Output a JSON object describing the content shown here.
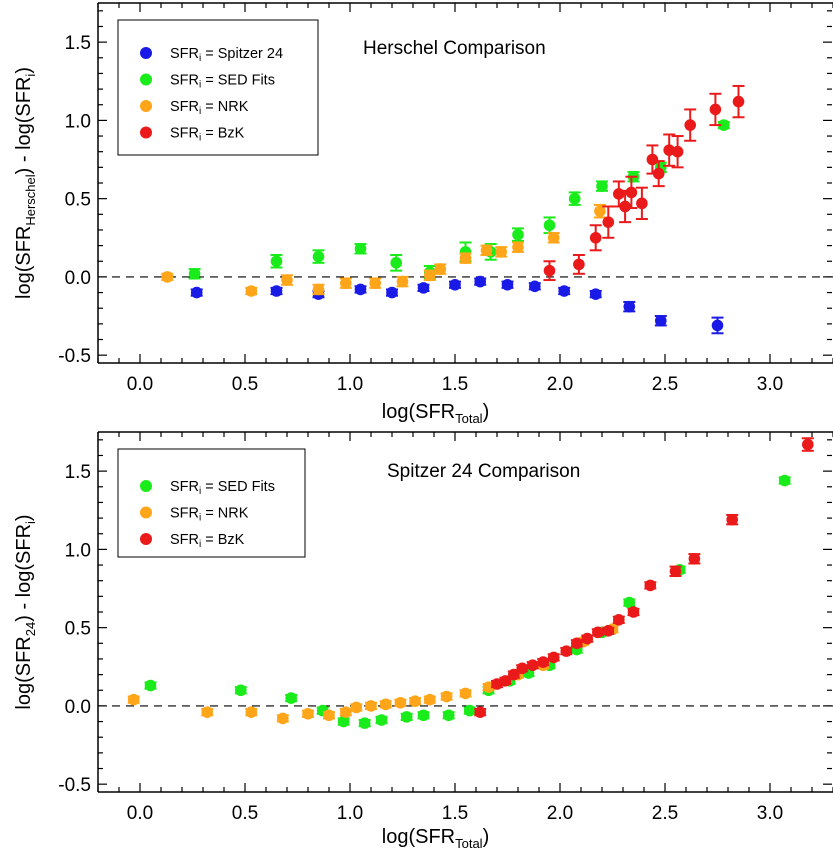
{
  "chart_data": [
    {
      "type": "scatter",
      "title": "Herschel Comparison",
      "xlabel": "log(SFR",
      "xlabel_sub": "Total",
      "xlabel_tail": ")",
      "ylabel_pre": "log(SFR",
      "ylabel_sub1": "Herschel",
      "ylabel_mid": ") - log(SFR",
      "ylabel_sub2": "i",
      "ylabel_tail": ")",
      "xlim": [
        -0.2,
        3.3
      ],
      "ylim": [
        -0.55,
        1.75
      ],
      "xticks": [
        0.0,
        0.5,
        1.0,
        1.5,
        2.0,
        2.5,
        3.0
      ],
      "xtick_labels": [
        "0.0",
        "0.5",
        "1.0",
        "1.5",
        "2.0",
        "2.5",
        "3.0"
      ],
      "yticks": [
        -0.5,
        0.0,
        0.5,
        1.0,
        1.5
      ],
      "ytick_labels": [
        "-0.5",
        "0.0",
        "0.5",
        "1.0",
        "1.5"
      ],
      "reference_line": 0.0,
      "legend_position": "top-left",
      "series": [
        {
          "name_pre": "SFR",
          "name_sub": "i",
          "name_post": " = Spitzer 24",
          "color": "#1a1ae6",
          "points": [
            [
              0.27,
              -0.1,
              0.02
            ],
            [
              0.65,
              -0.09,
              0.02
            ],
            [
              0.85,
              -0.11,
              0.02
            ],
            [
              1.05,
              -0.08,
              0.02
            ],
            [
              1.2,
              -0.1,
              0.02
            ],
            [
              1.35,
              -0.07,
              0.02
            ],
            [
              1.5,
              -0.05,
              0.02
            ],
            [
              1.62,
              -0.03,
              0.02
            ],
            [
              1.75,
              -0.05,
              0.02
            ],
            [
              1.88,
              -0.06,
              0.02
            ],
            [
              2.02,
              -0.09,
              0.02
            ],
            [
              2.17,
              -0.11,
              0.02
            ],
            [
              2.33,
              -0.19,
              0.03
            ],
            [
              2.48,
              -0.28,
              0.03
            ],
            [
              2.75,
              -0.31,
              0.05
            ]
          ]
        },
        {
          "name_pre": "SFR",
          "name_sub": "i",
          "name_post": " = SED Fits",
          "color": "#1aeb1a",
          "points": [
            [
              0.26,
              0.02,
              0.03
            ],
            [
              0.65,
              0.1,
              0.04
            ],
            [
              0.85,
              0.13,
              0.04
            ],
            [
              1.05,
              0.18,
              0.03
            ],
            [
              1.22,
              0.09,
              0.05
            ],
            [
              1.38,
              0.03,
              0.04
            ],
            [
              1.55,
              0.16,
              0.06
            ],
            [
              1.67,
              0.16,
              0.05
            ],
            [
              1.8,
              0.27,
              0.04
            ],
            [
              1.95,
              0.33,
              0.05
            ],
            [
              2.07,
              0.5,
              0.04
            ],
            [
              2.2,
              0.58,
              0.03
            ],
            [
              2.35,
              0.64,
              0.03
            ],
            [
              2.48,
              0.7,
              0.03
            ],
            [
              2.78,
              0.97,
              0.02
            ]
          ]
        },
        {
          "name_pre": "SFR",
          "name_sub": "i",
          "name_post": " = NRK",
          "color": "#ffa51a",
          "points": [
            [
              0.13,
              0.0,
              0.02
            ],
            [
              0.53,
              -0.09,
              0.02
            ],
            [
              0.7,
              -0.02,
              0.03
            ],
            [
              0.85,
              -0.08,
              0.03
            ],
            [
              0.98,
              -0.04,
              0.03
            ],
            [
              1.12,
              -0.04,
              0.03
            ],
            [
              1.25,
              -0.03,
              0.03
            ],
            [
              1.38,
              0.01,
              0.03
            ],
            [
              1.43,
              0.05,
              0.03
            ],
            [
              1.55,
              0.12,
              0.03
            ],
            [
              1.65,
              0.17,
              0.03
            ],
            [
              1.72,
              0.16,
              0.03
            ],
            [
              1.8,
              0.19,
              0.03
            ],
            [
              1.97,
              0.25,
              0.03
            ],
            [
              2.19,
              0.42,
              0.04
            ]
          ]
        },
        {
          "name_pre": "SFR",
          "name_sub": "i",
          "name_post": " = BzK",
          "color": "#eb1a1a",
          "points": [
            [
              1.95,
              0.04,
              0.06
            ],
            [
              2.09,
              0.08,
              0.06
            ],
            [
              2.17,
              0.25,
              0.08
            ],
            [
              2.23,
              0.35,
              0.1
            ],
            [
              2.28,
              0.53,
              0.08
            ],
            [
              2.31,
              0.45,
              0.1
            ],
            [
              2.34,
              0.54,
              0.1
            ],
            [
              2.39,
              0.47,
              0.1
            ],
            [
              2.44,
              0.75,
              0.09
            ],
            [
              2.47,
              0.66,
              0.08
            ],
            [
              2.52,
              0.81,
              0.1
            ],
            [
              2.56,
              0.8,
              0.1
            ],
            [
              2.62,
              0.97,
              0.1
            ],
            [
              2.74,
              1.07,
              0.1
            ],
            [
              2.85,
              1.12,
              0.1
            ]
          ]
        }
      ]
    },
    {
      "type": "scatter",
      "title": "Spitzer 24 Comparison",
      "xlabel": "log(SFR",
      "xlabel_sub": "Total",
      "xlabel_tail": ")",
      "ylabel_pre": "log(SFR",
      "ylabel_sub1": "24",
      "ylabel_mid": ") - log(SFR",
      "ylabel_sub2": "i",
      "ylabel_tail": ")",
      "xlim": [
        -0.2,
        3.3
      ],
      "ylim": [
        -0.55,
        1.75
      ],
      "xticks": [
        0.0,
        0.5,
        1.0,
        1.5,
        2.0,
        2.5,
        3.0
      ],
      "xtick_labels": [
        "0.0",
        "0.5",
        "1.0",
        "1.5",
        "2.0",
        "2.5",
        "3.0"
      ],
      "yticks": [
        -0.5,
        0.0,
        0.5,
        1.0,
        1.5
      ],
      "ytick_labels": [
        "-0.5",
        "0.0",
        "0.5",
        "1.0",
        "1.5"
      ],
      "reference_line": 0.0,
      "legend_position": "top-left",
      "series": [
        {
          "name_pre": "SFR",
          "name_sub": "i",
          "name_post": " = SED Fits",
          "color": "#1aeb1a",
          "points": [
            [
              0.05,
              0.13,
              0.02
            ],
            [
              0.48,
              0.1,
              0.02
            ],
            [
              0.72,
              0.05,
              0.02
            ],
            [
              0.87,
              -0.03,
              0.02
            ],
            [
              0.97,
              -0.1,
              0.02
            ],
            [
              1.07,
              -0.11,
              0.02
            ],
            [
              1.15,
              -0.09,
              0.02
            ],
            [
              1.27,
              -0.07,
              0.02
            ],
            [
              1.35,
              -0.06,
              0.02
            ],
            [
              1.47,
              -0.06,
              0.02
            ],
            [
              1.57,
              -0.03,
              0.02
            ],
            [
              1.66,
              0.1,
              0.02
            ],
            [
              1.76,
              0.16,
              0.02
            ],
            [
              1.85,
              0.21,
              0.02
            ],
            [
              1.95,
              0.26,
              0.02
            ],
            [
              2.08,
              0.36,
              0.02
            ],
            [
              2.2,
              0.47,
              0.02
            ],
            [
              2.33,
              0.66,
              0.02
            ],
            [
              2.57,
              0.87,
              0.02
            ],
            [
              3.07,
              1.44,
              0.02
            ]
          ]
        },
        {
          "name_pre": "SFR",
          "name_sub": "i",
          "name_post": " = NRK",
          "color": "#ffa51a",
          "points": [
            [
              -0.03,
              0.04,
              0.02
            ],
            [
              0.32,
              -0.04,
              0.02
            ],
            [
              0.53,
              -0.04,
              0.02
            ],
            [
              0.68,
              -0.08,
              0.02
            ],
            [
              0.8,
              -0.05,
              0.02
            ],
            [
              0.9,
              -0.06,
              0.02
            ],
            [
              0.98,
              -0.04,
              0.02
            ],
            [
              1.03,
              -0.01,
              0.02
            ],
            [
              1.1,
              0.0,
              0.02
            ],
            [
              1.17,
              0.01,
              0.02
            ],
            [
              1.24,
              0.02,
              0.02
            ],
            [
              1.31,
              0.03,
              0.02
            ],
            [
              1.38,
              0.04,
              0.02
            ],
            [
              1.46,
              0.06,
              0.02
            ],
            [
              1.55,
              0.08,
              0.02
            ],
            [
              1.66,
              0.12,
              0.02
            ],
            [
              1.8,
              0.2,
              0.02
            ],
            [
              1.92,
              0.26,
              0.02
            ],
            [
              2.11,
              0.41,
              0.02
            ],
            [
              2.25,
              0.49,
              0.02
            ]
          ]
        },
        {
          "name_pre": "SFR",
          "name_sub": "i",
          "name_post": " = BzK",
          "color": "#eb1a1a",
          "points": [
            [
              1.62,
              -0.04,
              0.02
            ],
            [
              1.7,
              0.14,
              0.02
            ],
            [
              1.74,
              0.16,
              0.02
            ],
            [
              1.78,
              0.2,
              0.02
            ],
            [
              1.82,
              0.24,
              0.02
            ],
            [
              1.87,
              0.26,
              0.02
            ],
            [
              1.92,
              0.28,
              0.02
            ],
            [
              1.97,
              0.31,
              0.02
            ],
            [
              2.03,
              0.35,
              0.02
            ],
            [
              2.08,
              0.4,
              0.02
            ],
            [
              2.13,
              0.43,
              0.02
            ],
            [
              2.18,
              0.47,
              0.02
            ],
            [
              2.23,
              0.48,
              0.02
            ],
            [
              2.28,
              0.55,
              0.02
            ],
            [
              2.35,
              0.6,
              0.02
            ],
            [
              2.43,
              0.77,
              0.02
            ],
            [
              2.55,
              0.86,
              0.03
            ],
            [
              2.64,
              0.94,
              0.03
            ],
            [
              2.82,
              1.19,
              0.03
            ],
            [
              3.18,
              1.67,
              0.04
            ]
          ]
        }
      ]
    }
  ]
}
